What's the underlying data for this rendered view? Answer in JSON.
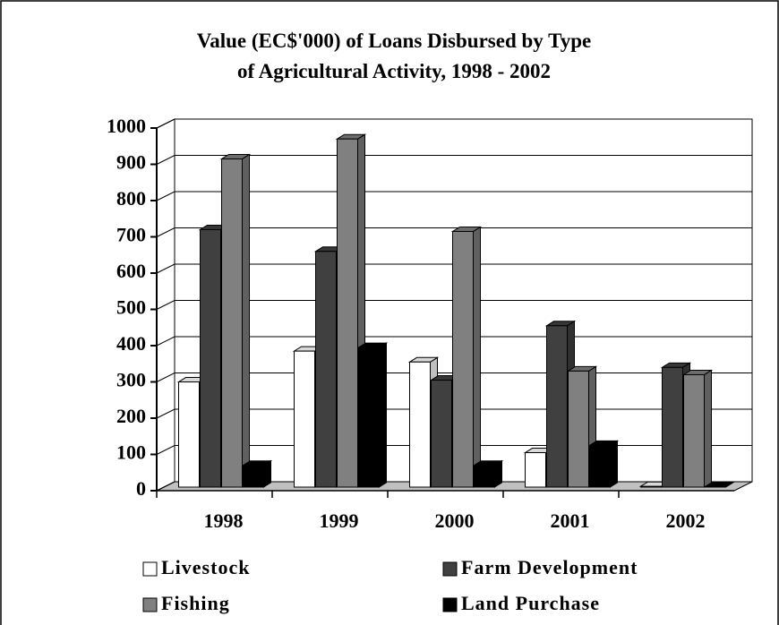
{
  "chart_data": {
    "type": "bar3d",
    "title": "Value (EC$'000) of Loans Disbursed by Type of Agricultural Activity, 1998 - 2002",
    "categories": [
      "1998",
      "1999",
      "2000",
      "2001",
      "2002"
    ],
    "series": [
      {
        "name": "Livestock",
        "color": "#ffffff",
        "values": [
          290,
          375,
          345,
          95,
          2
        ]
      },
      {
        "name": "Farm Development",
        "color": "#404040",
        "values": [
          710,
          650,
          295,
          445,
          330
        ]
      },
      {
        "name": "Fishing",
        "color": "#808080",
        "values": [
          905,
          960,
          705,
          320,
          310
        ]
      },
      {
        "name": "Land Purchase",
        "color": "#000000",
        "values": [
          60,
          385,
          60,
          115,
          0
        ]
      }
    ],
    "ylim": [
      0,
      1000
    ],
    "yticks": [
      0,
      100,
      200,
      300,
      400,
      500,
      600,
      700,
      800,
      900,
      1000
    ],
    "grid": true
  }
}
